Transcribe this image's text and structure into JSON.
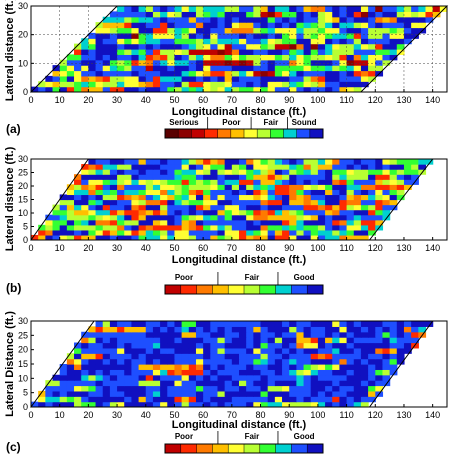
{
  "figure": {
    "panel_labels": [
      "(a)",
      "(b)",
      "(c)"
    ]
  },
  "colors": {
    "scale": [
      "#5a0000",
      "#8b0000",
      "#c00000",
      "#ff2a00",
      "#ff7a00",
      "#ffbf00",
      "#ffff33",
      "#b8ff33",
      "#33ff33",
      "#00d0d0",
      "#1e4fff",
      "#1010c0"
    ]
  },
  "chart_data": [
    {
      "type": "heatmap",
      "title": "",
      "xlabel": "Longitudinal distance (ft.)",
      "ylabel": "Lateral distance (ft.)",
      "xlim": [
        0,
        145
      ],
      "ylim": [
        0,
        30
      ],
      "xticks": [
        "0",
        "10",
        "20",
        "30",
        "40",
        "50",
        "60",
        "70",
        "80",
        "90",
        "100",
        "110",
        "120",
        "130",
        "140"
      ],
      "yticks": [
        "0",
        "10",
        "20",
        "30"
      ],
      "skew_deck": {
        "bottom_edge_x": [
          0,
          115
        ],
        "top_edge_x": [
          30,
          145
        ]
      },
      "grid": true,
      "legend": {
        "position": "bottom",
        "labels": [
          "Serious",
          "Poor",
          "Fair",
          "Sound"
        ]
      },
      "condition_mix": {
        "serious": 0.03,
        "poor": 0.12,
        "fair": 0.45,
        "sound": 0.4
      }
    },
    {
      "type": "heatmap",
      "title": "",
      "xlabel": "Longitudinal distance (ft.)",
      "ylabel": "Lateral distance (ft.)",
      "xlim": [
        0,
        145
      ],
      "ylim": [
        0,
        30
      ],
      "xticks": [
        "0",
        "10",
        "20",
        "30",
        "40",
        "50",
        "60",
        "70",
        "80",
        "90",
        "100",
        "110",
        "120",
        "130",
        "140"
      ],
      "yticks": [
        "0",
        "5",
        "10",
        "15",
        "20",
        "25",
        "30"
      ],
      "skew_deck": {
        "bottom_edge_x": [
          0,
          118
        ],
        "top_edge_x": [
          20,
          140
        ]
      },
      "grid": false,
      "legend": {
        "position": "bottom",
        "labels": [
          "Poor",
          "Fair",
          "Good"
        ]
      },
      "condition_mix": {
        "poor": 0.2,
        "fair": 0.4,
        "good": 0.4
      }
    },
    {
      "type": "heatmap",
      "title": "",
      "xlabel": "Longitudinal distance (ft.)",
      "ylabel": "Lateral Distance (ft.)",
      "xlim": [
        0,
        145
      ],
      "ylim": [
        0,
        30
      ],
      "xticks": [
        "0",
        "10",
        "20",
        "30",
        "40",
        "50",
        "60",
        "70",
        "80",
        "90",
        "100",
        "110",
        "120",
        "130",
        "140"
      ],
      "yticks": [
        "0",
        "5",
        "10",
        "15",
        "20",
        "25",
        "30"
      ],
      "skew_deck": {
        "bottom_edge_x": [
          0,
          118
        ],
        "top_edge_x": [
          22,
          140
        ]
      },
      "grid": false,
      "legend": {
        "position": "bottom",
        "labels": [
          "Poor",
          "Fair",
          "Good"
        ]
      },
      "condition_mix": {
        "poor": 0.05,
        "fair": 0.15,
        "good": 0.8
      }
    }
  ]
}
